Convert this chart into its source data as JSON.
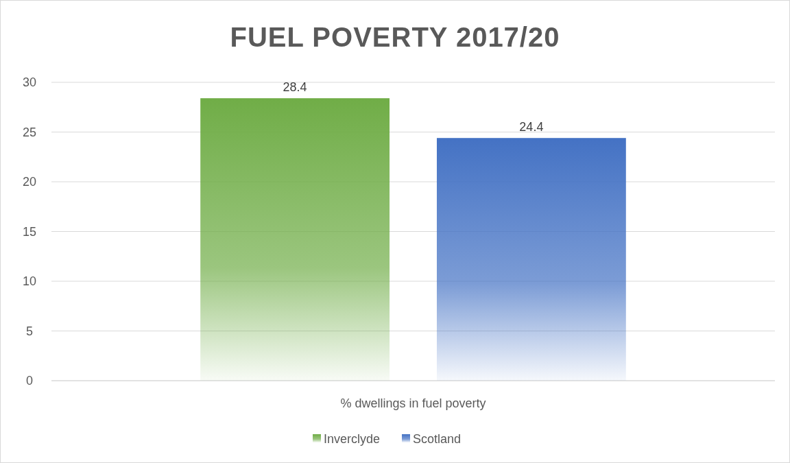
{
  "chart_data": {
    "type": "bar",
    "title": "FUEL POVERTY 2017/20",
    "categories": [
      "% dwellings in fuel poverty"
    ],
    "series": [
      {
        "name": "Inverclyde",
        "color": "#70ad47",
        "values": [
          28.4
        ]
      },
      {
        "name": "Scotland",
        "color": "#4472c4",
        "values": [
          24.4
        ]
      }
    ],
    "ylim": [
      0,
      30
    ],
    "yticks": [
      0,
      5,
      10,
      15,
      20,
      25,
      30
    ],
    "grid": "y",
    "legend": "bottom",
    "data_labels": true
  }
}
